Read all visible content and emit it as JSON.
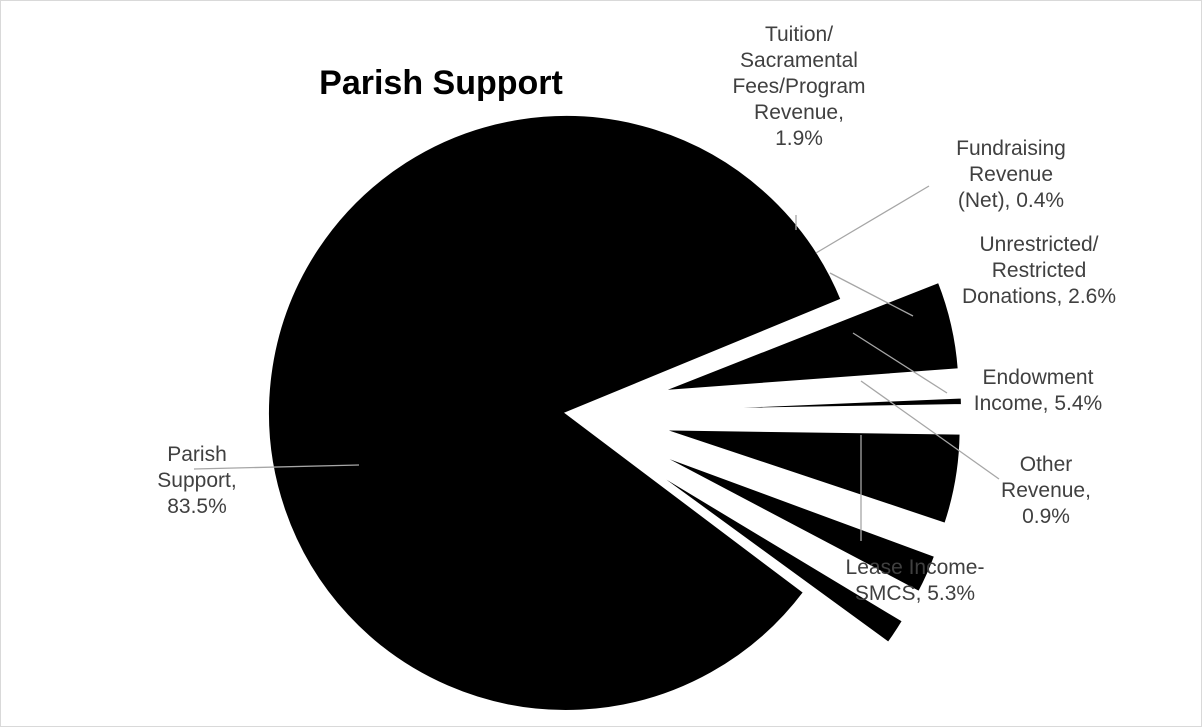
{
  "chart_data": {
    "type": "pie",
    "title": "Parish Support",
    "slices": [
      {
        "name": "Parish Support",
        "value": 83.5,
        "label_lines": [
          "Parish",
          "Support,",
          "83.5%"
        ]
      },
      {
        "name": "Lease Income-SMCS",
        "value": 5.3,
        "label_lines": [
          "Lease Income-",
          "SMCS, 5.3%"
        ]
      },
      {
        "name": "Other Revenue",
        "value": 0.9,
        "label_lines": [
          "Other",
          "Revenue,",
          "0.9%"
        ]
      },
      {
        "name": "Endowment Income",
        "value": 5.4,
        "label_lines": [
          "Endowment",
          "Income, 5.4%"
        ]
      },
      {
        "name": "Unrestricted/Restricted Donations",
        "value": 2.6,
        "label_lines": [
          "Unrestricted/",
          "Restricted",
          "Donations, 2.6%"
        ]
      },
      {
        "name": "Fundraising Revenue (Net)",
        "value": 0.4,
        "label_lines": [
          "Fundraising",
          "Revenue",
          "(Net), 0.4%"
        ]
      },
      {
        "name": "Tuition/Sacramental Fees/Program Revenue",
        "value": 1.9,
        "label_lines": [
          "Tuition/",
          "Sacramental",
          "Fees/Program",
          "Revenue,",
          "1.9%"
        ]
      }
    ],
    "slice_color": "#000000",
    "exploded": true,
    "legend": "none",
    "data_labels": "outside with leader lines"
  }
}
